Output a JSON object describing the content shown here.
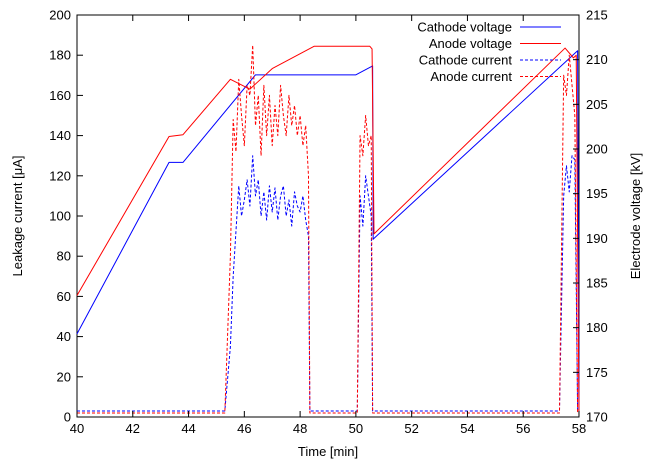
{
  "chart_data": {
    "type": "line",
    "title": "",
    "xlabel": "Time [min]",
    "ylabel_left": "Leakage current [μA]",
    "ylabel_right": "Electrode voltage [kV]",
    "xlim": [
      40,
      58
    ],
    "ylim_left": [
      0,
      200
    ],
    "ylim_right": [
      170,
      215
    ],
    "x_ticks": [
      40,
      42,
      44,
      46,
      48,
      50,
      52,
      54,
      56,
      58
    ],
    "y_left_ticks": [
      0,
      20,
      40,
      60,
      80,
      100,
      120,
      140,
      160,
      180,
      200
    ],
    "y_right_ticks": [
      170,
      175,
      180,
      185,
      190,
      195,
      200,
      205,
      210,
      215
    ],
    "grid": false,
    "legend_position": "top-right",
    "colors": {
      "blue": "#0000ff",
      "red": "#ff0000"
    },
    "series": [
      {
        "name": "Cathode voltage",
        "axis": "right",
        "style": "solid",
        "color": "#0000ff",
        "points": [
          [
            40.0,
            179.3
          ],
          [
            43.3,
            198.5
          ],
          [
            43.8,
            198.5
          ],
          [
            46.4,
            208.3
          ],
          [
            50.0,
            208.3
          ],
          [
            50.6,
            209.3
          ],
          [
            50.62,
            189.9
          ],
          [
            50.65,
            190.0
          ],
          [
            57.95,
            211.0
          ],
          [
            58.0,
            170.0
          ]
        ]
      },
      {
        "name": "Anode voltage",
        "axis": "right",
        "style": "solid",
        "color": "#ff0000",
        "points": [
          [
            40.0,
            183.6
          ],
          [
            43.3,
            201.4
          ],
          [
            43.8,
            201.6
          ],
          [
            45.5,
            207.8
          ],
          [
            46.2,
            206.7
          ],
          [
            47.0,
            209.0
          ],
          [
            48.5,
            211.5
          ],
          [
            50.5,
            211.5
          ],
          [
            50.58,
            211.2
          ],
          [
            50.65,
            190.5
          ],
          [
            57.5,
            211.3
          ],
          [
            57.8,
            210.2
          ],
          [
            57.9,
            210.5
          ],
          [
            58.0,
            170.0
          ]
        ]
      },
      {
        "name": "Cathode current",
        "axis": "left",
        "style": "dashed",
        "color": "#0000ff",
        "points": [
          [
            40.0,
            3
          ],
          [
            45.3,
            3
          ],
          [
            45.5,
            35
          ],
          [
            45.6,
            70
          ],
          [
            45.8,
            115
          ],
          [
            45.9,
            100
          ],
          [
            46.0,
            108
          ],
          [
            46.1,
            118
          ],
          [
            46.2,
            105
          ],
          [
            46.3,
            130
          ],
          [
            46.4,
            110
          ],
          [
            46.5,
            118
          ],
          [
            46.6,
            100
          ],
          [
            46.7,
            112
          ],
          [
            46.8,
            98
          ],
          [
            46.9,
            115
          ],
          [
            47.0,
            102
          ],
          [
            47.1,
            114
          ],
          [
            47.2,
            98
          ],
          [
            47.3,
            110
          ],
          [
            47.4,
            115
          ],
          [
            47.5,
            100
          ],
          [
            47.6,
            108
          ],
          [
            47.7,
            95
          ],
          [
            47.8,
            112
          ],
          [
            47.9,
            105
          ],
          [
            48.0,
            102
          ],
          [
            48.1,
            110
          ],
          [
            48.2,
            98
          ],
          [
            48.3,
            90
          ],
          [
            48.35,
            3
          ],
          [
            50.05,
            3
          ],
          [
            50.15,
            110
          ],
          [
            50.25,
            95
          ],
          [
            50.35,
            120
          ],
          [
            50.45,
            110
          ],
          [
            50.55,
            100
          ],
          [
            50.6,
            3
          ],
          [
            57.3,
            3
          ],
          [
            57.45,
            110
          ],
          [
            57.55,
            125
          ],
          [
            57.65,
            112
          ],
          [
            57.75,
            130
          ],
          [
            57.85,
            128
          ],
          [
            57.95,
            3
          ]
        ]
      },
      {
        "name": "Anode current",
        "axis": "left",
        "style": "dashed",
        "color": "#ff0000",
        "points": [
          [
            40.0,
            2
          ],
          [
            45.3,
            2
          ],
          [
            45.5,
            80
          ],
          [
            45.6,
            148
          ],
          [
            45.7,
            132
          ],
          [
            45.8,
            168
          ],
          [
            45.9,
            150
          ],
          [
            46.0,
            135
          ],
          [
            46.1,
            165
          ],
          [
            46.2,
            160
          ],
          [
            46.3,
            185
          ],
          [
            46.4,
            145
          ],
          [
            46.5,
            160
          ],
          [
            46.6,
            130
          ],
          [
            46.7,
            165
          ],
          [
            46.8,
            140
          ],
          [
            46.9,
            160
          ],
          [
            47.0,
            135
          ],
          [
            47.1,
            155
          ],
          [
            47.2,
            140
          ],
          [
            47.3,
            165
          ],
          [
            47.4,
            150
          ],
          [
            47.5,
            140
          ],
          [
            47.6,
            160
          ],
          [
            47.7,
            145
          ],
          [
            47.8,
            155
          ],
          [
            47.9,
            140
          ],
          [
            48.0,
            150
          ],
          [
            48.1,
            135
          ],
          [
            48.2,
            145
          ],
          [
            48.3,
            120
          ],
          [
            48.35,
            2
          ],
          [
            50.05,
            2
          ],
          [
            50.15,
            140
          ],
          [
            50.25,
            130
          ],
          [
            50.35,
            150
          ],
          [
            50.45,
            135
          ],
          [
            50.55,
            140
          ],
          [
            50.6,
            2
          ],
          [
            57.3,
            2
          ],
          [
            57.45,
            170
          ],
          [
            57.55,
            160
          ],
          [
            57.65,
            180
          ],
          [
            57.75,
            165
          ],
          [
            57.85,
            150
          ],
          [
            57.95,
            2
          ]
        ]
      }
    ]
  }
}
